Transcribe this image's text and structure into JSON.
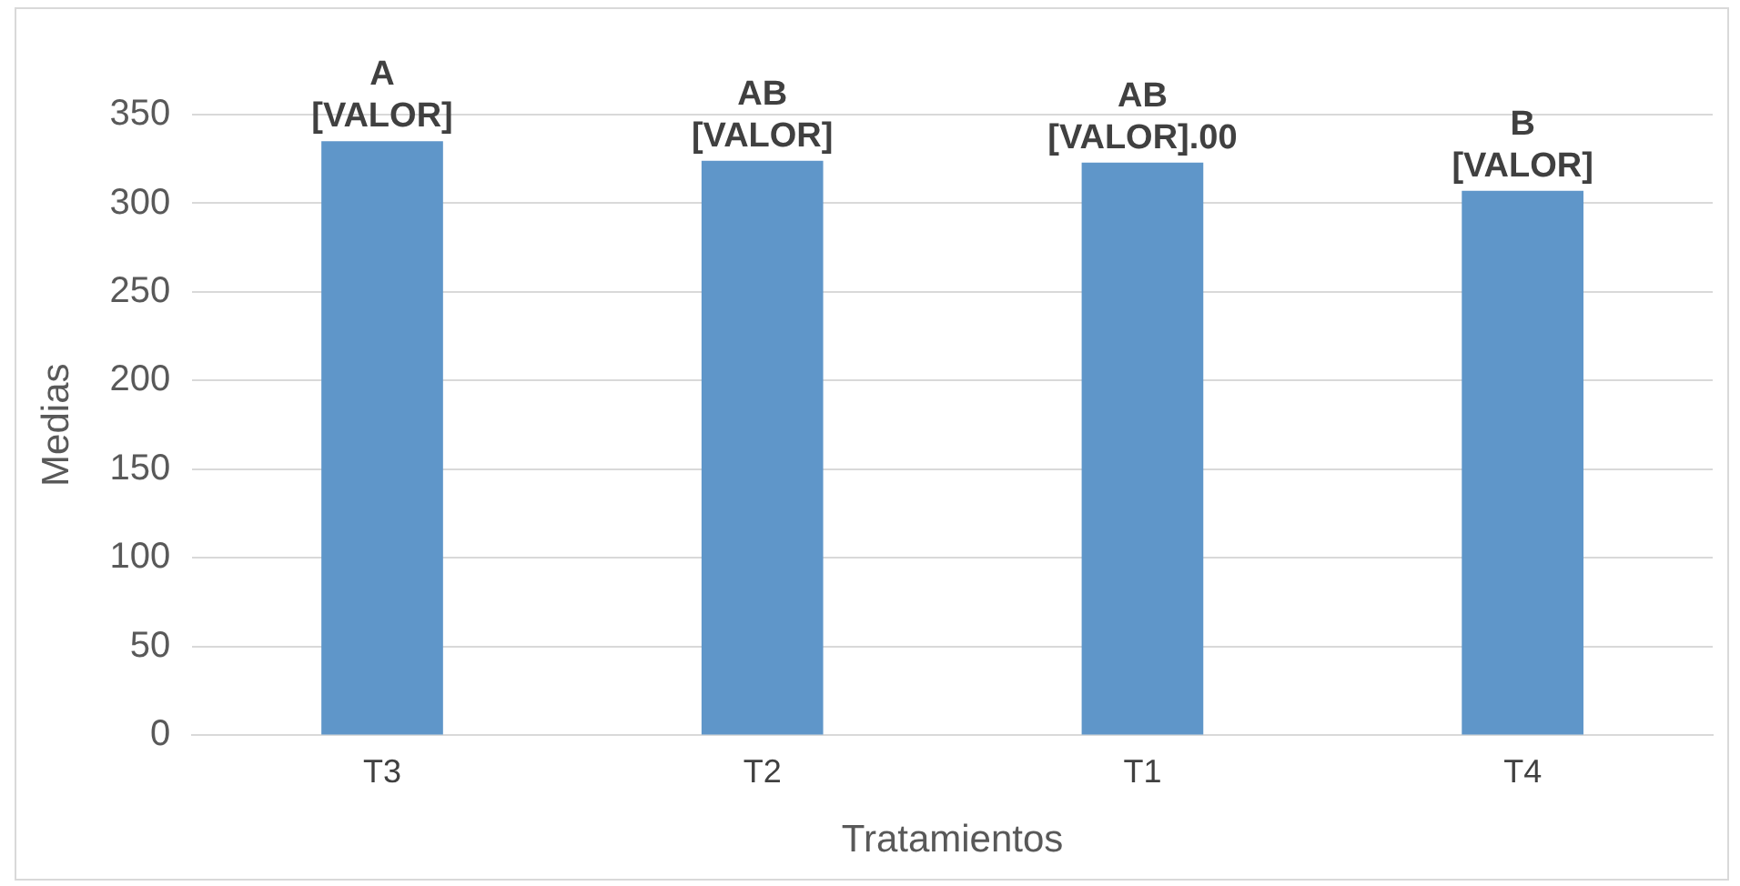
{
  "chart_data": {
    "type": "bar",
    "xlabel": "Tratamientos",
    "ylabel": "Medias",
    "categories": [
      "T3",
      "T2",
      "T1",
      "T4"
    ],
    "values": [
      335,
      324,
      323,
      307
    ],
    "annotations": [
      {
        "text": "A\n[VALOR]",
        "x": "T3",
        "y": 335
      },
      {
        "text": "AB\n[VALOR]",
        "x": "T2",
        "y": 324
      },
      {
        "text": "AB\n[VALOR].00",
        "x": "T1",
        "y": 323
      },
      {
        "text": "B\n[VALOR]",
        "x": "T4",
        "y": 307
      }
    ],
    "color": "#5f96c9",
    "ylim": [
      0,
      350
    ],
    "yticks": [
      0,
      50,
      100,
      150,
      200,
      250,
      300,
      350
    ],
    "grid": "y",
    "legend": false
  }
}
